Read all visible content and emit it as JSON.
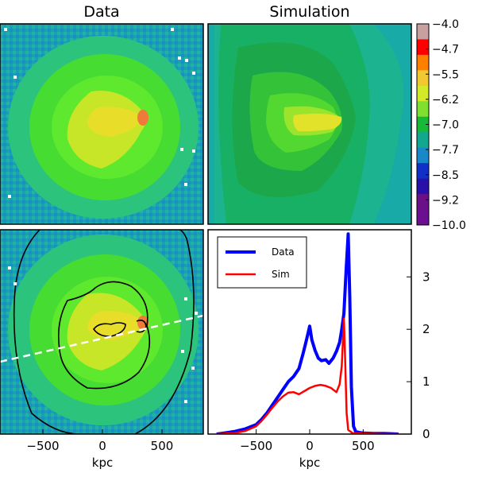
{
  "chart_data": [
    {
      "type": "heatmap",
      "panel": "data-map",
      "title": "Data",
      "description_colors": [
        "#1aa0b4",
        "#1ec89a",
        "#3fe23a",
        "#7fe82a",
        "#c8e628",
        "#f2e02a",
        "#f6a03a",
        "#f05c3a"
      ]
    },
    {
      "type": "heatmap",
      "panel": "simulation-map",
      "title": "Simulation"
    },
    {
      "type": "heatmap",
      "panel": "data-map-with-contours",
      "xlabel": "kpc",
      "xticks": [
        -500,
        0,
        500
      ],
      "xlim": [
        -850,
        850
      ]
    },
    {
      "type": "line",
      "panel": "profile",
      "xlabel": "kpc",
      "xticks": [
        -500,
        0,
        500
      ],
      "yticks": [
        0,
        1,
        2,
        3
      ],
      "xlim": [
        -950,
        950
      ],
      "ylim": [
        0,
        3.9
      ],
      "series": [
        {
          "name": "Data",
          "color": "#0000ff",
          "x": [
            -870,
            -800,
            -700,
            -600,
            -500,
            -450,
            -400,
            -350,
            -300,
            -250,
            -200,
            -150,
            -100,
            -60,
            -30,
            0,
            20,
            50,
            80,
            110,
            150,
            180,
            220,
            250,
            280,
            300,
            320,
            340,
            360,
            375,
            390,
            410,
            430,
            460,
            500,
            600,
            700,
            830
          ],
          "y": [
            0.0,
            0.02,
            0.05,
            0.1,
            0.18,
            0.28,
            0.4,
            0.55,
            0.7,
            0.85,
            1.0,
            1.1,
            1.25,
            1.55,
            1.8,
            2.06,
            1.8,
            1.6,
            1.45,
            1.4,
            1.42,
            1.35,
            1.45,
            1.58,
            1.75,
            2.0,
            2.3,
            3.1,
            3.82,
            2.6,
            0.9,
            0.15,
            0.05,
            0.03,
            0.02,
            0.01,
            0.01,
            0.0
          ]
        },
        {
          "name": "Sim",
          "color": "#ff0000",
          "x": [
            -870,
            -700,
            -600,
            -500,
            -450,
            -400,
            -350,
            -300,
            -250,
            -200,
            -150,
            -100,
            -50,
            0,
            50,
            100,
            150,
            200,
            250,
            280,
            300,
            320,
            330,
            345,
            360,
            400,
            500,
            700,
            830
          ],
          "y": [
            0.0,
            0.02,
            0.06,
            0.15,
            0.25,
            0.37,
            0.5,
            0.62,
            0.72,
            0.79,
            0.8,
            0.76,
            0.82,
            0.88,
            0.92,
            0.94,
            0.92,
            0.88,
            0.8,
            0.95,
            1.3,
            2.2,
            1.5,
            0.4,
            0.08,
            0.02,
            0.01,
            0.0,
            0.0
          ]
        }
      ],
      "legend": "top-left"
    },
    {
      "type": "colorbar",
      "tick_labels": [
        "-4.0",
        "-4.7",
        "-5.5",
        "-6.2",
        "-7.0",
        "-7.7",
        "-8.5",
        "-9.2",
        "-10.0"
      ],
      "colors": [
        "#c8a0a0",
        "#ff0000",
        "#ff7f00",
        "#f2c830",
        "#d2ea28",
        "#80e030",
        "#18b838",
        "#12a890",
        "#1888c8",
        "#1030c8",
        "#2810a8",
        "#6a1088",
        "#6a1090"
      ]
    }
  ]
}
